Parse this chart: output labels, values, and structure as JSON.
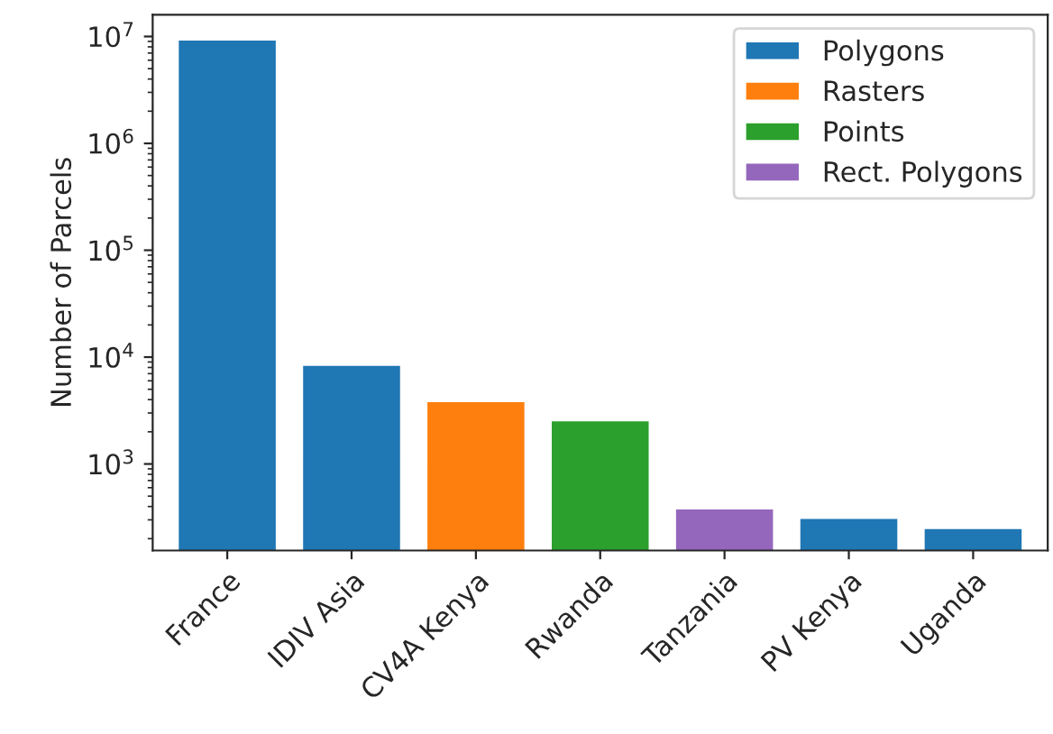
{
  "chart_data": {
    "type": "bar",
    "ylabel": "Number of Parcels",
    "categories": [
      "France",
      "IDIV Asia",
      "CV4A Kenya",
      "Rwanda",
      "Tanzania",
      "PV Kenya",
      "Uganda"
    ],
    "series": [
      {
        "name": "Polygons",
        "color": "#1f77b4",
        "values": [
          9400000,
          8500,
          null,
          null,
          null,
          315,
          253
        ]
      },
      {
        "name": "Rasters",
        "color": "#ff7f0e",
        "values": [
          null,
          null,
          3900,
          null,
          null,
          null,
          null
        ]
      },
      {
        "name": "Points",
        "color": "#2ca02c",
        "values": [
          null,
          null,
          null,
          2580,
          null,
          null,
          null
        ]
      },
      {
        "name": "Rect. Polygons",
        "color": "#9467bd",
        "values": [
          null,
          null,
          null,
          null,
          385,
          null,
          null
        ]
      }
    ],
    "log": "y",
    "ylim": [
      155,
      16000000
    ],
    "yticks": [
      {
        "value": 1000,
        "label": "10$^{3}$"
      },
      {
        "value": 10000,
        "label": "10$^{4}$"
      },
      {
        "value": 100000,
        "label": "10$^{5}$"
      },
      {
        "value": 1000000,
        "label": "10$^{6}$"
      },
      {
        "value": 10000000,
        "label": "10$^{7}$"
      }
    ],
    "grid": false,
    "legend": "top right"
  }
}
